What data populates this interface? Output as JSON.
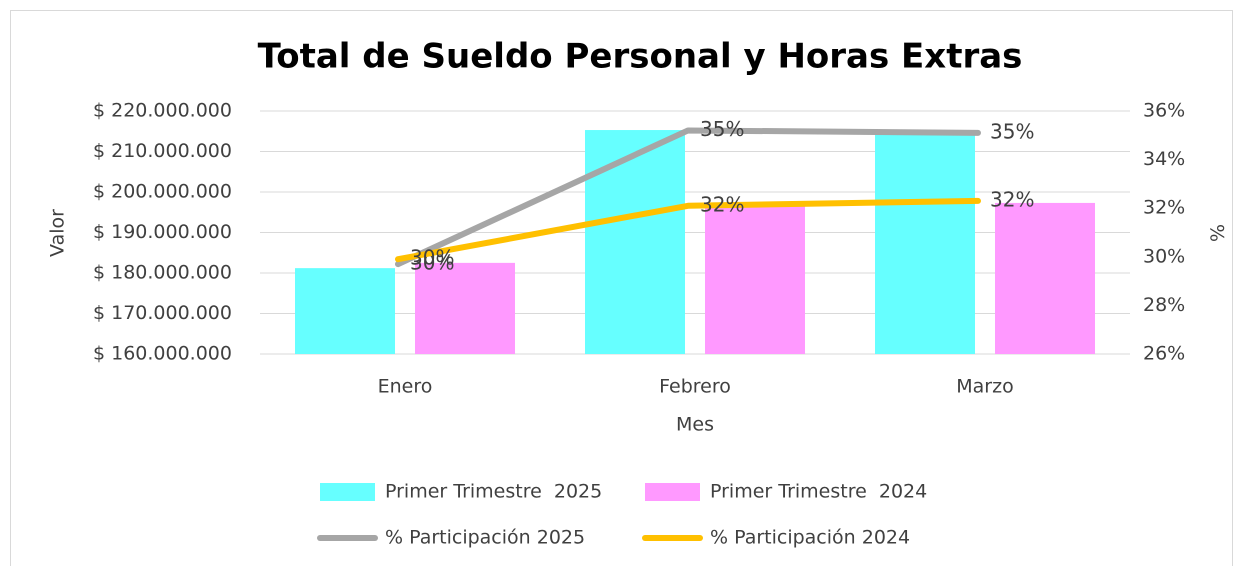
{
  "chart_data": {
    "type": "bar",
    "title": "Total de Sueldo Personal y Horas Extras",
    "x_label": "Mes",
    "y_label": "Valor",
    "y2_label": "%",
    "categories": [
      "Enero",
      "Febrero",
      "Marzo"
    ],
    "series": [
      {
        "name": "Primer Trimestre  2025",
        "type": "bar",
        "color": "#66ffff",
        "values": [
          181200000,
          215300000,
          214100000
        ]
      },
      {
        "name": "Primer Trimestre  2024",
        "type": "bar",
        "color": "#ff99ff",
        "values": [
          182500000,
          196500000,
          197300000
        ]
      },
      {
        "name": "% Participación 2025",
        "type": "line",
        "axis": "y2",
        "color": "#a6a6a6",
        "values": [
          29.7,
          35.2,
          35.1
        ],
        "value_labels": [
          "30%",
          "35%",
          "35%"
        ]
      },
      {
        "name": "% Participación 2024",
        "type": "line",
        "axis": "y2",
        "color": "#ffc000",
        "values": [
          29.9,
          32.1,
          32.3
        ],
        "value_labels": [
          "30%",
          "32%",
          "32%"
        ]
      }
    ],
    "ylim": [
      160000000,
      220000000
    ],
    "yticks": [
      {
        "value": 160000000,
        "label": "$ 160.000.000"
      },
      {
        "value": 170000000,
        "label": "$ 170.000.000"
      },
      {
        "value": 180000000,
        "label": "$ 180.000.000"
      },
      {
        "value": 190000000,
        "label": "$ 190.000.000"
      },
      {
        "value": 200000000,
        "label": "$ 200.000.000"
      },
      {
        "value": 210000000,
        "label": "$ 210.000.000"
      },
      {
        "value": 220000000,
        "label": "$ 220.000.000"
      }
    ],
    "y2lim": [
      26,
      36
    ],
    "y2ticks": [
      {
        "value": 26,
        "label": "26%"
      },
      {
        "value": 28,
        "label": "28%"
      },
      {
        "value": 30,
        "label": "30%"
      },
      {
        "value": 32,
        "label": "32%"
      },
      {
        "value": 34,
        "label": "34%"
      },
      {
        "value": 36,
        "label": "36%"
      }
    ],
    "grid": true,
    "legend": "bottom"
  }
}
